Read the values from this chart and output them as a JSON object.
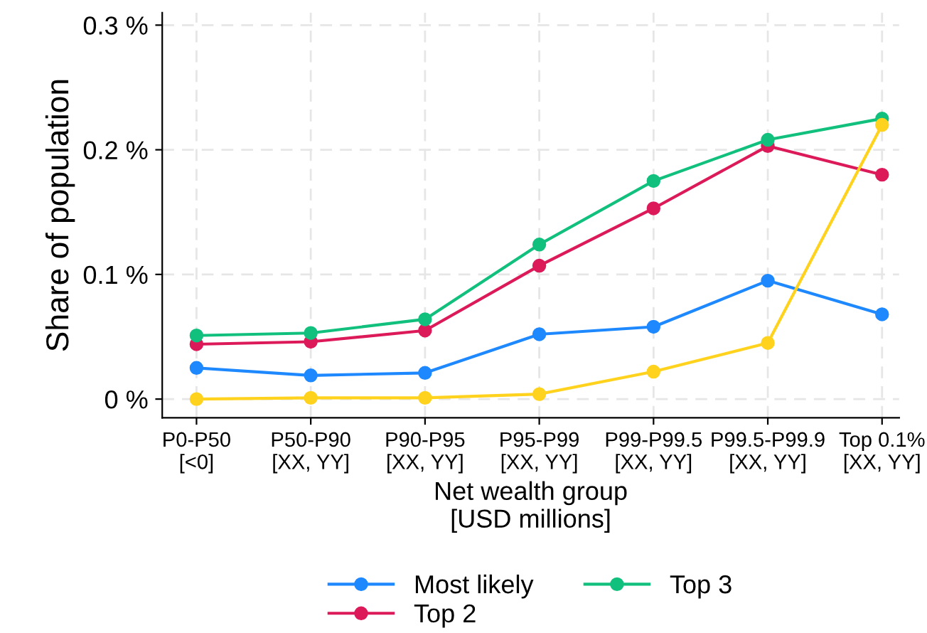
{
  "chart_data": {
    "type": "line",
    "xlabel": "Net wealth group\n[USD millions]",
    "ylabel": "Share of population",
    "categories": [
      "P0-P50\n[<0]",
      "P50-P90\n[XX, YY]",
      "P90-P95\n[XX, YY]",
      "P95-P99\n[XX, YY]",
      "P99-P99.5\n[XX, YY]",
      "P99.5-P99.9\n[XX, YY]",
      "Top 0.1%\n[XX, YY]"
    ],
    "series": [
      {
        "name": "Most likely",
        "color": "#1e88ff",
        "values": [
          0.025,
          0.019,
          0.021,
          0.052,
          0.058,
          0.095,
          0.068
        ]
      },
      {
        "name": "Top 2",
        "color": "#dc1a5a",
        "values": [
          0.044,
          0.046,
          0.055,
          0.107,
          0.153,
          0.203,
          0.18
        ]
      },
      {
        "name": "Top 3",
        "color": "#12c07e",
        "values": [
          0.051,
          0.053,
          0.064,
          0.124,
          0.175,
          0.208,
          0.225
        ]
      },
      {
        "color": "#ffd21e",
        "values": [
          0.0,
          0.001,
          0.001,
          0.004,
          0.022,
          0.045,
          0.22
        ]
      }
    ],
    "ylim": [
      -0.015,
      0.31
    ],
    "yticks": [
      {
        "value": 0,
        "label": "0 %"
      },
      {
        "value": 0.1,
        "label": "0.1 %"
      },
      {
        "value": 0.2,
        "label": "0.2 %"
      },
      {
        "value": 0.3,
        "label": "0.3 %"
      }
    ],
    "grid": true,
    "legend": "bottom",
    "marker": "circle",
    "line_style": "solid"
  }
}
